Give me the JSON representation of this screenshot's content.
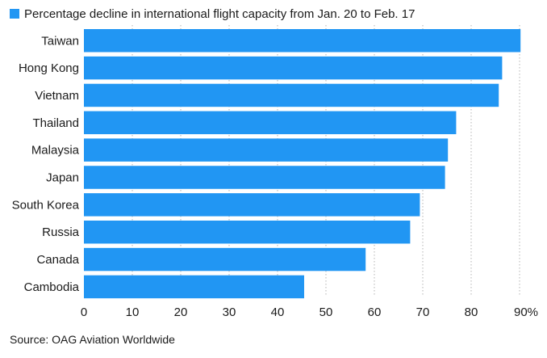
{
  "chart_data": {
    "type": "bar",
    "orientation": "horizontal",
    "legend": {
      "label": "Percentage decline in international flight capacity from Jan. 20 to Feb. 17",
      "position": "top-left"
    },
    "categories": [
      "Taiwan",
      "Hong Kong",
      "Vietnam",
      "Thailand",
      "Malaysia",
      "Japan",
      "South Korea",
      "Russia",
      "Canada",
      "Cambodia"
    ],
    "values": [
      90.2,
      86.4,
      85.7,
      76.9,
      75.2,
      74.6,
      69.4,
      67.4,
      58.2,
      45.5
    ],
    "xlim": [
      0,
      90
    ],
    "x_ticks": [
      "0",
      "10",
      "20",
      "30",
      "40",
      "50",
      "60",
      "70",
      "80",
      "90%"
    ],
    "bar_color": "#2196f3",
    "source": "Source: OAG Aviation Worldwide",
    "grid": true
  }
}
